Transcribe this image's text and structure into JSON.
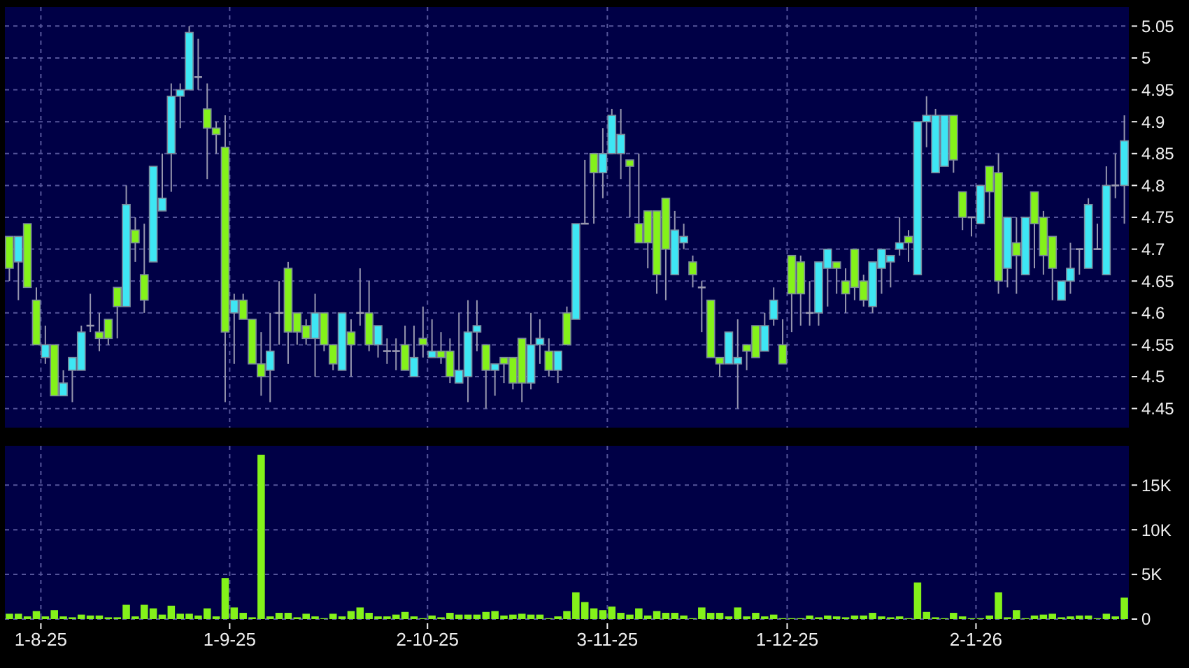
{
  "chart_data": [
    {
      "type": "candlestick",
      "categories": [
        null,
        null,
        null,
        null,
        null,
        null,
        null,
        null,
        null,
        null,
        null,
        null,
        null,
        null,
        null,
        null,
        null,
        null,
        null,
        null,
        null,
        null,
        null,
        null,
        null,
        null,
        null,
        null,
        null,
        null,
        null,
        null,
        null,
        null,
        null,
        null,
        null,
        null,
        null,
        null,
        null,
        null,
        null,
        null,
        null,
        null,
        null,
        null,
        null,
        null,
        null,
        null,
        null,
        null,
        null,
        null,
        null,
        null,
        null,
        null,
        null,
        null,
        null,
        null,
        null,
        null,
        null,
        null,
        null,
        null,
        null,
        null,
        null,
        null,
        null,
        null,
        null,
        null,
        null,
        null,
        null,
        null,
        null,
        null,
        null,
        null,
        null,
        null,
        null,
        null,
        null,
        null,
        null,
        null,
        null,
        null,
        null,
        null,
        null,
        null,
        null,
        null,
        null,
        null,
        null,
        null,
        null,
        null,
        null,
        null,
        null,
        null,
        null,
        null,
        null,
        null,
        null,
        null,
        null,
        null,
        null,
        null,
        null,
        null,
        null
      ],
      "ohlc": [
        [
          4.72,
          4.72,
          4.65,
          4.67
        ],
        [
          4.68,
          4.72,
          4.62,
          4.72
        ],
        [
          4.74,
          4.74,
          4.64,
          4.64
        ],
        [
          4.62,
          4.64,
          4.55,
          4.55
        ],
        [
          4.53,
          4.58,
          4.52,
          4.55
        ],
        [
          4.55,
          4.55,
          4.47,
          4.47
        ],
        [
          4.47,
          4.51,
          4.47,
          4.49
        ],
        [
          4.51,
          4.53,
          4.46,
          4.53
        ],
        [
          4.51,
          4.58,
          4.51,
          4.57
        ],
        [
          4.58,
          4.63,
          4.57,
          4.58
        ],
        [
          4.57,
          4.6,
          4.54,
          4.56
        ],
        [
          4.59,
          4.59,
          4.55,
          4.56
        ],
        [
          4.64,
          4.64,
          4.56,
          4.61
        ],
        [
          4.61,
          4.8,
          4.61,
          4.77
        ],
        [
          4.73,
          4.75,
          4.68,
          4.71
        ],
        [
          4.66,
          4.74,
          4.6,
          4.62
        ],
        [
          4.68,
          4.83,
          4.68,
          4.83
        ],
        [
          4.76,
          4.85,
          4.76,
          4.78
        ],
        [
          4.85,
          4.96,
          4.79,
          4.94
        ],
        [
          4.94,
          4.96,
          4.89,
          4.95
        ],
        [
          4.95,
          5.05,
          4.95,
          5.04
        ],
        [
          4.97,
          5.03,
          4.95,
          4.97
        ],
        [
          4.92,
          4.96,
          4.81,
          4.89
        ],
        [
          4.89,
          4.9,
          4.85,
          4.88
        ],
        [
          4.86,
          4.91,
          4.46,
          4.57
        ],
        [
          4.6,
          4.63,
          4.52,
          4.62
        ],
        [
          4.62,
          4.63,
          4.59,
          4.59
        ],
        [
          4.59,
          4.59,
          4.52,
          4.52
        ],
        [
          4.52,
          4.57,
          4.47,
          4.5
        ],
        [
          4.51,
          4.6,
          4.46,
          4.54
        ],
        [
          4.6,
          4.65,
          4.55,
          4.6
        ],
        [
          4.67,
          4.68,
          4.52,
          4.57
        ],
        [
          4.6,
          4.6,
          4.55,
          4.57
        ],
        [
          4.58,
          4.59,
          4.55,
          4.56
        ],
        [
          4.56,
          4.63,
          4.5,
          4.6
        ],
        [
          4.6,
          4.6,
          4.54,
          4.55
        ],
        [
          4.55,
          4.55,
          4.51,
          4.52
        ],
        [
          4.51,
          4.6,
          4.51,
          4.6
        ],
        [
          4.57,
          4.59,
          4.5,
          4.55
        ],
        [
          4.6,
          4.67,
          4.58,
          4.6
        ],
        [
          4.6,
          4.65,
          4.54,
          4.55
        ],
        [
          4.55,
          4.58,
          4.53,
          4.58
        ],
        [
          4.54,
          4.56,
          4.52,
          4.54
        ],
        [
          4.54,
          4.56,
          4.51,
          4.54
        ],
        [
          4.55,
          4.58,
          4.51,
          4.51
        ],
        [
          4.5,
          4.58,
          4.5,
          4.53
        ],
        [
          4.56,
          4.61,
          4.53,
          4.55
        ],
        [
          4.53,
          4.59,
          4.53,
          4.54
        ],
        [
          4.54,
          4.57,
          4.52,
          4.53
        ],
        [
          4.54,
          4.56,
          4.49,
          4.5
        ],
        [
          4.49,
          4.6,
          4.49,
          4.51
        ],
        [
          4.5,
          4.62,
          4.46,
          4.57
        ],
        [
          4.57,
          4.62,
          4.54,
          4.58
        ],
        [
          4.55,
          4.55,
          4.45,
          4.51
        ],
        [
          4.51,
          4.52,
          4.47,
          4.52
        ],
        [
          4.53,
          4.53,
          4.49,
          4.52
        ],
        [
          4.53,
          4.53,
          4.48,
          4.49
        ],
        [
          4.56,
          4.56,
          4.46,
          4.49
        ],
        [
          4.49,
          4.6,
          4.48,
          4.55
        ],
        [
          4.55,
          4.59,
          4.52,
          4.56
        ],
        [
          4.54,
          4.56,
          4.5,
          4.51
        ],
        [
          4.51,
          4.54,
          4.49,
          4.54
        ],
        [
          4.6,
          4.61,
          4.55,
          4.55
        ],
        [
          4.59,
          4.74,
          4.59,
          4.74
        ],
        [
          4.74,
          4.84,
          4.74,
          4.74
        ],
        [
          4.85,
          4.85,
          4.74,
          4.82
        ],
        [
          4.82,
          4.89,
          4.78,
          4.85
        ],
        [
          4.85,
          4.92,
          4.85,
          4.91
        ],
        [
          4.85,
          4.92,
          4.81,
          4.88
        ],
        [
          4.84,
          4.84,
          4.75,
          4.83
        ],
        [
          4.74,
          4.85,
          4.71,
          4.71
        ],
        [
          4.76,
          4.76,
          4.67,
          4.71
        ],
        [
          4.76,
          4.76,
          4.63,
          4.66
        ],
        [
          4.78,
          4.78,
          4.62,
          4.7
        ],
        [
          4.66,
          4.76,
          4.66,
          4.73
        ],
        [
          4.71,
          4.74,
          4.7,
          4.72
        ],
        [
          4.68,
          4.69,
          4.64,
          4.66
        ],
        [
          4.64,
          4.65,
          4.57,
          4.64
        ],
        [
          4.62,
          4.62,
          4.53,
          4.53
        ],
        [
          4.53,
          4.53,
          4.5,
          4.52
        ],
        [
          4.52,
          4.57,
          4.52,
          4.57
        ],
        [
          4.52,
          4.59,
          4.45,
          4.53
        ],
        [
          4.55,
          4.55,
          4.51,
          4.54
        ],
        [
          4.58,
          4.58,
          4.53,
          4.53
        ],
        [
          4.54,
          4.6,
          4.54,
          4.58
        ],
        [
          4.59,
          4.64,
          4.58,
          4.62
        ],
        [
          4.55,
          4.59,
          4.52,
          4.52
        ],
        [
          4.69,
          4.69,
          4.57,
          4.63
        ],
        [
          4.68,
          4.69,
          4.58,
          4.63
        ],
        [
          4.6,
          4.65,
          4.58,
          4.6
        ],
        [
          4.6,
          4.68,
          4.58,
          4.68
        ],
        [
          4.67,
          4.7,
          4.61,
          4.7
        ],
        [
          4.68,
          4.68,
          4.63,
          4.67
        ],
        [
          4.65,
          4.67,
          4.6,
          4.63
        ],
        [
          4.7,
          4.7,
          4.62,
          4.64
        ],
        [
          4.65,
          4.66,
          4.61,
          4.62
        ],
        [
          4.61,
          4.68,
          4.6,
          4.68
        ],
        [
          4.67,
          4.7,
          4.63,
          4.7
        ],
        [
          4.68,
          4.69,
          4.64,
          4.69
        ],
        [
          4.7,
          4.75,
          4.69,
          4.71
        ],
        [
          4.72,
          4.73,
          4.68,
          4.71
        ],
        [
          4.66,
          4.9,
          4.66,
          4.9
        ],
        [
          4.9,
          4.94,
          4.86,
          4.91
        ],
        [
          4.82,
          4.92,
          4.82,
          4.91
        ],
        [
          4.83,
          4.91,
          4.83,
          4.91
        ],
        [
          4.91,
          4.91,
          4.82,
          4.84
        ],
        [
          4.79,
          4.79,
          4.73,
          4.75
        ],
        [
          4.75,
          4.75,
          4.72,
          4.75
        ],
        [
          4.74,
          4.8,
          4.74,
          4.8
        ],
        [
          4.83,
          4.83,
          4.75,
          4.79
        ],
        [
          4.82,
          4.85,
          4.63,
          4.65
        ],
        [
          4.67,
          4.75,
          4.64,
          4.75
        ],
        [
          4.71,
          4.75,
          4.63,
          4.69
        ],
        [
          4.66,
          4.75,
          4.66,
          4.75
        ],
        [
          4.79,
          4.79,
          4.67,
          4.74
        ],
        [
          4.75,
          4.76,
          4.66,
          4.69
        ],
        [
          4.72,
          4.72,
          4.62,
          4.67
        ],
        [
          4.62,
          4.65,
          4.62,
          4.65
        ],
        [
          4.65,
          4.71,
          4.63,
          4.67
        ],
        [
          4.7,
          4.7,
          4.66,
          4.7
        ],
        [
          4.67,
          4.78,
          4.67,
          4.77
        ],
        [
          4.7,
          4.74,
          4.7,
          4.7
        ],
        [
          4.66,
          4.83,
          4.66,
          4.8
        ],
        [
          4.8,
          4.85,
          4.78,
          4.8
        ],
        [
          4.8,
          4.91,
          4.74,
          4.87
        ]
      ],
      "colors": [
        "#84f21a",
        "#3ee6f4",
        "#84f21a",
        "#84f21a",
        "#3ee6f4",
        "#84f21a",
        "#3ee6f4",
        "#3ee6f4",
        "#3ee6f4",
        "#9a9ab0",
        "#84f21a",
        "#84f21a",
        "#84f21a",
        "#3ee6f4",
        "#84f21a",
        "#84f21a",
        "#3ee6f4",
        "#3ee6f4",
        "#3ee6f4",
        "#3ee6f4",
        "#3ee6f4",
        "#9a9ab0",
        "#84f21a",
        "#84f21a",
        "#84f21a",
        "#3ee6f4",
        "#84f21a",
        "#84f21a",
        "#84f21a",
        "#3ee6f4",
        "#9a9ab0",
        "#84f21a",
        "#84f21a",
        "#84f21a",
        "#3ee6f4",
        "#84f21a",
        "#84f21a",
        "#3ee6f4",
        "#84f21a",
        "#9a9ab0",
        "#84f21a",
        "#3ee6f4",
        "#9a9ab0",
        "#9a9ab0",
        "#84f21a",
        "#3ee6f4",
        "#84f21a",
        "#3ee6f4",
        "#84f21a",
        "#84f21a",
        "#3ee6f4",
        "#3ee6f4",
        "#3ee6f4",
        "#84f21a",
        "#3ee6f4",
        "#84f21a",
        "#84f21a",
        "#84f21a",
        "#3ee6f4",
        "#3ee6f4",
        "#84f21a",
        "#3ee6f4",
        "#84f21a",
        "#3ee6f4",
        "#9a9ab0",
        "#84f21a",
        "#3ee6f4",
        "#3ee6f4",
        "#3ee6f4",
        "#84f21a",
        "#84f21a",
        "#84f21a",
        "#84f21a",
        "#84f21a",
        "#3ee6f4",
        "#3ee6f4",
        "#84f21a",
        "#9a9ab0",
        "#84f21a",
        "#84f21a",
        "#3ee6f4",
        "#3ee6f4",
        "#84f21a",
        "#84f21a",
        "#3ee6f4",
        "#3ee6f4",
        "#84f21a",
        "#84f21a",
        "#84f21a",
        "#9a9ab0",
        "#3ee6f4",
        "#3ee6f4",
        "#84f21a",
        "#84f21a",
        "#84f21a",
        "#84f21a",
        "#3ee6f4",
        "#3ee6f4",
        "#3ee6f4",
        "#3ee6f4",
        "#84f21a",
        "#3ee6f4",
        "#3ee6f4",
        "#3ee6f4",
        "#3ee6f4",
        "#84f21a",
        "#84f21a",
        "#9a9ab0",
        "#3ee6f4",
        "#84f21a",
        "#84f21a",
        "#3ee6f4",
        "#84f21a",
        "#3ee6f4",
        "#84f21a",
        "#84f21a",
        "#84f21a",
        "#3ee6f4",
        "#3ee6f4",
        "#9a9ab0",
        "#3ee6f4",
        "#9a9ab0",
        "#3ee6f4",
        "#9a9ab0",
        "#3ee6f4"
      ],
      "ylim": [
        4.42,
        5.08
      ],
      "yticks": [
        4.45,
        4.5,
        4.55,
        4.6,
        4.65,
        4.7,
        4.75,
        4.8,
        4.85,
        4.9,
        4.95,
        5,
        5.05
      ],
      "grid": true
    },
    {
      "type": "bar",
      "categories": [
        null,
        null,
        null,
        null,
        "1-8-25",
        null,
        null,
        null,
        null,
        null,
        null,
        null,
        null,
        null,
        null,
        null,
        null,
        null,
        null,
        null,
        null,
        null,
        null,
        null,
        null,
        "1-9-25",
        null,
        null,
        null,
        null,
        null,
        null,
        null,
        null,
        null,
        null,
        null,
        null,
        null,
        null,
        null,
        null,
        null,
        null,
        null,
        null,
        null,
        "2-10-25",
        null,
        null,
        null,
        null,
        null,
        null,
        null,
        null,
        null,
        null,
        null,
        null,
        null,
        null,
        null,
        null,
        null,
        null,
        null,
        "3-11-25",
        null,
        null,
        null,
        null,
        null,
        null,
        null,
        null,
        null,
        null,
        null,
        null,
        null,
        null,
        null,
        null,
        null,
        null,
        null,
        "1-12-25",
        null,
        null,
        null,
        null,
        null,
        null,
        null,
        null,
        null,
        null,
        null,
        null,
        null,
        null,
        null,
        null,
        null,
        null,
        null,
        null,
        "2-1-26",
        null,
        null,
        null,
        null,
        null,
        null,
        null,
        null,
        null,
        null,
        null,
        null,
        null,
        null,
        null,
        null
      ],
      "values": [
        600,
        600,
        300,
        900,
        300,
        1000,
        300,
        200,
        500,
        400,
        400,
        200,
        200,
        1600,
        300,
        1600,
        1200,
        500,
        1500,
        600,
        600,
        400,
        1200,
        300,
        4600,
        1300,
        700,
        200,
        18400,
        300,
        700,
        700,
        200,
        600,
        300,
        100,
        600,
        300,
        900,
        1300,
        700,
        300,
        300,
        500,
        800,
        300,
        100,
        400,
        200,
        700,
        500,
        500,
        500,
        800,
        900,
        400,
        500,
        600,
        500,
        500,
        100,
        300,
        900,
        3000,
        1900,
        1200,
        1000,
        1400,
        700,
        500,
        1200,
        400,
        900,
        700,
        700,
        400,
        100,
        1300,
        700,
        700,
        300,
        1300,
        300,
        700,
        300,
        500,
        100,
        100,
        100,
        400,
        200,
        400,
        300,
        200,
        400,
        400,
        700,
        300,
        200,
        300,
        100,
        4100,
        800,
        200,
        100,
        700,
        300,
        100,
        100,
        400,
        3000,
        200,
        1000,
        100,
        400,
        500,
        600,
        200,
        300,
        400,
        400,
        100,
        600,
        300,
        2400
      ],
      "color": "#84f21a",
      "ylim": [
        0,
        19400
      ],
      "yticks": [
        0,
        {
          "value": 5000,
          "label": "5K"
        },
        {
          "value": 10000,
          "label": "10K"
        },
        {
          "value": 15000,
          "label": "15K"
        }
      ],
      "grid": true
    }
  ]
}
